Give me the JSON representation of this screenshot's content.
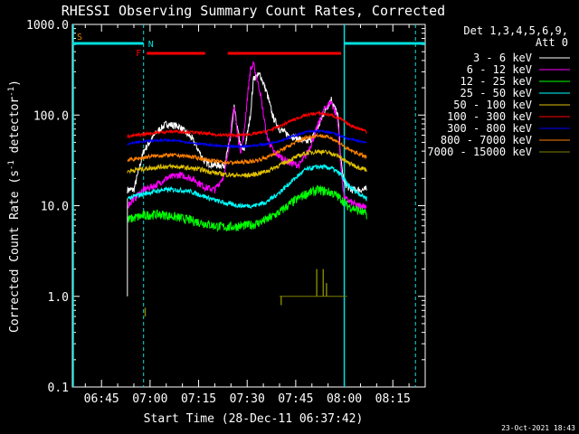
{
  "chart_data": {
    "type": "line",
    "title": "RHESSI Observing Summary Count Rates, Corrected",
    "xlabel": "Start Time (28-Dec-11 06:37:42)",
    "ylabel": "Corrected Count Rate (s⁻¹ detector⁻¹)",
    "ylabel_parts": {
      "main": "Corrected Count Rate (s",
      "exp1": "-1",
      "mid": " detector",
      "exp2": "-1",
      "end": ")"
    },
    "yscale": "log",
    "ylim": [
      0.1,
      1000
    ],
    "xlim_minutes": [
      36,
      145
    ],
    "x_ticks": [
      {
        "label": "06:45",
        "min": 45
      },
      {
        "label": "07:00",
        "min": 60
      },
      {
        "label": "07:15",
        "min": 75
      },
      {
        "label": "07:30",
        "min": 90
      },
      {
        "label": "07:45",
        "min": 105
      },
      {
        "label": "08:00",
        "min": 120
      },
      {
        "label": "08:15",
        "min": 135
      }
    ],
    "y_ticks": [
      {
        "label": "1000.0",
        "v": 1000
      },
      {
        "label": "100.0",
        "v": 100
      },
      {
        "label": "10.0",
        "v": 10
      },
      {
        "label": "1.0",
        "v": 1
      },
      {
        "label": "0.1",
        "v": 0.1
      }
    ],
    "legend": {
      "header": [
        "Det 1,3,4,5,6,9,",
        "Att 0"
      ],
      "placement": "right"
    },
    "flag_labels": {
      "saa": "S",
      "night": "N",
      "flare": "F"
    },
    "flags": {
      "saa_color": "#e08000",
      "night_color": "#00e0e0",
      "flare_color": "#ff0000",
      "night_intervals_min": [
        [
          36,
          58
        ],
        [
          120,
          145
        ]
      ],
      "night_boundaries_min": [
        58,
        120,
        142
      ],
      "flare_intervals_min": [
        [
          59,
          77
        ],
        [
          84,
          119
        ]
      ]
    },
    "data_window_min": [
      53,
      127
    ],
    "series": [
      {
        "name": "3 - 6 keV",
        "color": "#ffffff",
        "x": [
          53,
          55,
          58,
          62,
          65,
          69,
          73,
          77,
          80,
          83,
          85,
          86,
          87,
          88,
          89,
          90,
          91,
          92,
          94,
          96,
          98,
          100,
          103,
          106,
          108,
          110,
          112,
          114,
          116,
          118,
          119,
          120,
          122,
          124,
          126,
          127
        ],
        "y": [
          15,
          15,
          40,
          65,
          80,
          75,
          55,
          30,
          28,
          28,
          60,
          120,
          70,
          45,
          40,
          60,
          100,
          260,
          280,
          180,
          95,
          70,
          60,
          55,
          50,
          55,
          75,
          110,
          150,
          100,
          30,
          18,
          15,
          15,
          15,
          15
        ]
      },
      {
        "name": "6 - 12 keV",
        "color": "#ff00ff",
        "x": [
          53,
          55,
          58,
          62,
          65,
          69,
          73,
          77,
          80,
          83,
          85,
          86,
          87,
          88,
          89,
          90,
          91,
          92,
          94,
          96,
          98,
          100,
          103,
          106,
          108,
          110,
          112,
          114,
          116,
          118,
          119,
          120,
          122,
          124,
          126,
          127
        ],
        "y": [
          10,
          12,
          15,
          17,
          20,
          22,
          20,
          16,
          15,
          22,
          70,
          130,
          60,
          40,
          60,
          150,
          320,
          360,
          180,
          60,
          40,
          35,
          30,
          28,
          35,
          50,
          80,
          120,
          140,
          90,
          25,
          12,
          11,
          10,
          10,
          10
        ]
      },
      {
        "name": "12 - 25 keV",
        "color": "#00ff00",
        "x": [
          53,
          56,
          60,
          64,
          68,
          72,
          76,
          80,
          84,
          88,
          92,
          96,
          100,
          104,
          108,
          112,
          116,
          119,
          121,
          124,
          127
        ],
        "y": [
          7,
          7.5,
          8,
          8,
          7.5,
          7,
          6.5,
          6,
          5.8,
          6,
          6.2,
          7,
          8.5,
          11,
          13.5,
          15,
          14,
          12,
          10,
          9,
          8
        ]
      },
      {
        "name": "25 - 50 keV",
        "color": "#00ffff",
        "x": [
          53,
          56,
          60,
          64,
          68,
          72,
          76,
          80,
          84,
          88,
          92,
          96,
          100,
          104,
          108,
          112,
          116,
          119,
          121,
          124,
          127
        ],
        "y": [
          12,
          13,
          14,
          15,
          15,
          14.5,
          13,
          11.5,
          10.5,
          10,
          10,
          11,
          14,
          19,
          25,
          27,
          26,
          22,
          17,
          14,
          12
        ]
      },
      {
        "name": "50 - 100 keV",
        "color": "#e0c000",
        "x": [
          53,
          56,
          60,
          64,
          68,
          72,
          76,
          80,
          84,
          88,
          92,
          96,
          100,
          104,
          108,
          112,
          116,
          119,
          121,
          124,
          127
        ],
        "y": [
          24,
          25,
          26,
          27,
          27,
          26,
          25,
          23,
          22,
          21.5,
          22,
          24,
          28,
          33,
          38,
          40,
          38,
          34,
          30,
          27,
          25
        ]
      },
      {
        "name": "100 - 300 keV",
        "color": "#ff0000",
        "x": [
          53,
          56,
          60,
          64,
          68,
          72,
          76,
          80,
          84,
          88,
          92,
          96,
          100,
          104,
          108,
          112,
          116,
          119,
          121,
          124,
          127
        ],
        "y": [
          58,
          60,
          63,
          65,
          66,
          65,
          63,
          61,
          60,
          60,
          62,
          66,
          75,
          88,
          100,
          105,
          100,
          90,
          80,
          72,
          66
        ]
      },
      {
        "name": "300 - 800 keV",
        "color": "#0000ff",
        "x": [
          53,
          56,
          60,
          64,
          68,
          72,
          76,
          80,
          84,
          88,
          92,
          96,
          100,
          104,
          108,
          112,
          116,
          119,
          121,
          124,
          127
        ],
        "y": [
          48,
          50,
          52,
          53,
          52,
          50,
          48,
          46,
          45,
          45,
          46,
          48,
          52,
          58,
          65,
          67,
          64,
          59,
          55,
          52,
          50
        ]
      },
      {
        "name": "800 - 7000 keV",
        "color": "#ff8000",
        "x": [
          53,
          56,
          60,
          64,
          68,
          72,
          76,
          80,
          84,
          88,
          92,
          96,
          100,
          104,
          108,
          112,
          116,
          119,
          121,
          124,
          127
        ],
        "y": [
          32,
          33,
          35,
          36,
          36,
          35,
          33,
          31,
          30,
          30,
          31,
          34,
          40,
          48,
          56,
          60,
          56,
          48,
          42,
          38,
          34
        ]
      },
      {
        "name": "7000 - 15000 keV",
        "color": "#808000",
        "x": [
          100,
          101,
          103,
          105,
          107,
          109,
          110,
          111,
          112,
          113,
          114,
          116,
          118,
          120,
          121
        ],
        "y": [
          1.0,
          1.0,
          1.0,
          1.0,
          1.0,
          1.0,
          1.0,
          1.0,
          1.0,
          1.0,
          1.0,
          1.0,
          1.0,
          1.0,
          1.0
        ]
      }
    ],
    "spikes_7000": [
      {
        "x": 58.5,
        "y0": 0.6,
        "y1": 0.75
      },
      {
        "x": 100.5,
        "y0": 0.8,
        "y1": 1.0
      },
      {
        "x": 111.5,
        "y0": 1.0,
        "y1": 2.0
      },
      {
        "x": 113.5,
        "y0": 1.0,
        "y1": 2.0
      },
      {
        "x": 114.5,
        "y0": 1.0,
        "y1": 1.4
      }
    ],
    "footer": "23-Oct-2021 18:43"
  }
}
